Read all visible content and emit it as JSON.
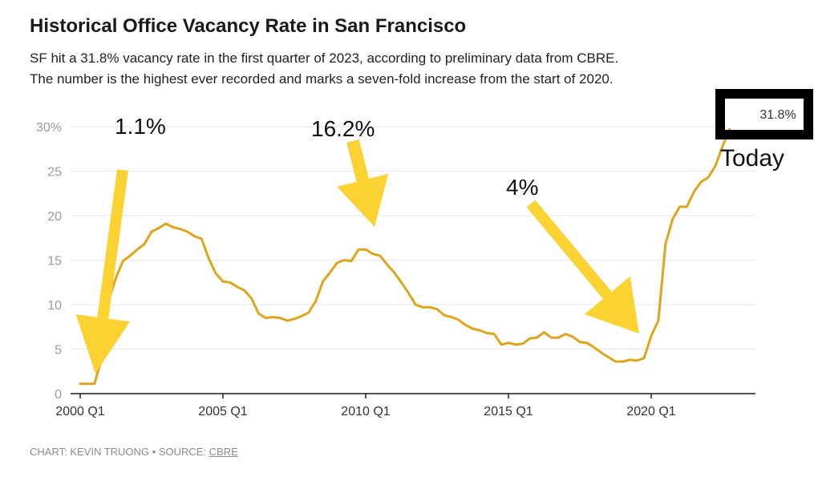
{
  "header": {
    "title": "Historical Office Vacancy Rate in San Francisco",
    "subtitle_lines": [
      "SF hit a 31.8% vacancy rate in the first quarter of 2023, according to preliminary data from CBRE.",
      "The number is the highest ever recorded and marks a seven-fold increase from the start of 2020."
    ]
  },
  "footer": {
    "prefix": "CHART: KEVIN TRUONG • SOURCE: ",
    "source_link": "CBRE"
  },
  "colors": {
    "line": "#e0a419",
    "arrow": "#fcd132",
    "grid": "#e6e6e6",
    "axis": "#1a1a1a",
    "tick_text": "#9a9a9a",
    "callout_border": "#000000"
  },
  "annotations": [
    {
      "text": "1.1%",
      "points_to": "2000 Q1"
    },
    {
      "text": "16.2%",
      "points_to": "2009 Q4"
    },
    {
      "text": "4%",
      "points_to": "2019 Q4"
    },
    {
      "text": "Today",
      "points_to": "2023 Q1"
    }
  ],
  "end_label": "31.8%",
  "chart_data": {
    "type": "line",
    "title": "Historical Office Vacancy Rate in San Francisco",
    "xlabel": "",
    "ylabel": "",
    "x_tick_labels": [
      "2000 Q1",
      "2005 Q1",
      "2010 Q1",
      "2015 Q1",
      "2020 Q1"
    ],
    "y_ticks": [
      0,
      5,
      10,
      15,
      20,
      25,
      30
    ],
    "y_tick_labels": [
      "0",
      "5",
      "10",
      "15",
      "20",
      "25",
      "30%"
    ],
    "ylim": [
      0,
      30
    ],
    "grid": true,
    "x": [
      "2000 Q1",
      "2000 Q2",
      "2000 Q3",
      "2000 Q4",
      "2001 Q1",
      "2001 Q2",
      "2001 Q3",
      "2001 Q4",
      "2002 Q1",
      "2002 Q2",
      "2002 Q3",
      "2002 Q4",
      "2003 Q1",
      "2003 Q2",
      "2003 Q3",
      "2003 Q4",
      "2004 Q1",
      "2004 Q2",
      "2004 Q3",
      "2004 Q4",
      "2005 Q1",
      "2005 Q2",
      "2005 Q3",
      "2005 Q4",
      "2006 Q1",
      "2006 Q2",
      "2006 Q3",
      "2006 Q4",
      "2007 Q1",
      "2007 Q2",
      "2007 Q3",
      "2007 Q4",
      "2008 Q1",
      "2008 Q2",
      "2008 Q3",
      "2008 Q4",
      "2009 Q1",
      "2009 Q2",
      "2009 Q3",
      "2009 Q4",
      "2010 Q1",
      "2010 Q2",
      "2010 Q3",
      "2010 Q4",
      "2011 Q1",
      "2011 Q2",
      "2011 Q3",
      "2011 Q4",
      "2012 Q1",
      "2012 Q2",
      "2012 Q3",
      "2012 Q4",
      "2013 Q1",
      "2013 Q2",
      "2013 Q3",
      "2013 Q4",
      "2014 Q1",
      "2014 Q2",
      "2014 Q3",
      "2014 Q4",
      "2015 Q1",
      "2015 Q2",
      "2015 Q3",
      "2015 Q4",
      "2016 Q1",
      "2016 Q2",
      "2016 Q3",
      "2016 Q4",
      "2017 Q1",
      "2017 Q2",
      "2017 Q3",
      "2017 Q4",
      "2018 Q1",
      "2018 Q2",
      "2018 Q3",
      "2018 Q4",
      "2019 Q1",
      "2019 Q2",
      "2019 Q3",
      "2019 Q4",
      "2020 Q1",
      "2020 Q2",
      "2020 Q3",
      "2020 Q4",
      "2021 Q1",
      "2021 Q2",
      "2021 Q3",
      "2021 Q4",
      "2022 Q1",
      "2022 Q2",
      "2022 Q3",
      "2022 Q4",
      "2023 Q1"
    ],
    "values": [
      1.1,
      1.1,
      1.1,
      4.0,
      10.5,
      13.0,
      14.9,
      15.5,
      16.2,
      16.8,
      18.2,
      18.6,
      19.1,
      18.7,
      18.5,
      18.2,
      17.7,
      17.4,
      15.2,
      13.5,
      12.6,
      12.5,
      12.0,
      11.6,
      10.7,
      9.0,
      8.5,
      8.6,
      8.5,
      8.2,
      8.4,
      8.7,
      9.1,
      10.4,
      12.6,
      13.6,
      14.7,
      15.0,
      14.9,
      16.2,
      16.2,
      15.7,
      15.5,
      14.5,
      13.6,
      12.5,
      11.3,
      10.0,
      9.7,
      9.7,
      9.5,
      8.8,
      8.6,
      8.3,
      7.7,
      7.3,
      7.1,
      6.8,
      6.7,
      5.5,
      5.7,
      5.5,
      5.6,
      6.2,
      6.3,
      6.9,
      6.3,
      6.3,
      6.7,
      6.4,
      5.8,
      5.7,
      5.2,
      4.6,
      4.1,
      3.6,
      3.6,
      3.8,
      3.7,
      4.0,
      6.5,
      8.2,
      16.8,
      19.6,
      21.0,
      21.0,
      22.7,
      23.8,
      24.3,
      25.6,
      27.8,
      29.8,
      31.8
    ]
  }
}
